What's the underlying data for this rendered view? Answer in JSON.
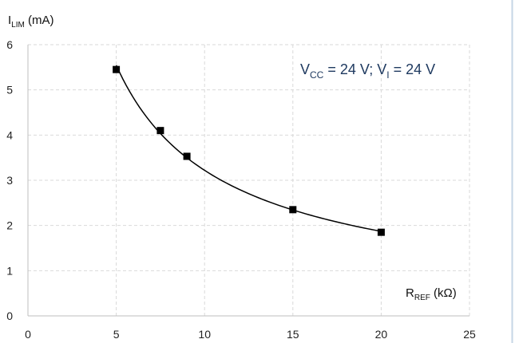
{
  "chart_data": {
    "type": "scatter",
    "title": "",
    "ylabel": {
      "main": "I",
      "sub": "LIM",
      "unit": " (mA)"
    },
    "xlabel": {
      "main": "R",
      "sub": "REF",
      "unit": " (kΩ)"
    },
    "annotation": {
      "p1": "V",
      "p1_sub": "CC",
      "p2": " = 24 V; V",
      "p2_sub": "I",
      "p3": " = 24 V",
      "color": "#1f3a60"
    },
    "xlim": [
      0,
      25
    ],
    "ylim": [
      0,
      6
    ],
    "xticks": [
      "0",
      "5",
      "10",
      "15",
      "20",
      "25"
    ],
    "yticks": [
      "0",
      "1",
      "2",
      "3",
      "4",
      "5",
      "6"
    ],
    "grid": true,
    "trendline": "power",
    "series": [
      {
        "x": [
          5,
          7.5,
          9,
          15,
          20
        ],
        "y": [
          5.45,
          4.1,
          3.53,
          2.35,
          1.85
        ]
      }
    ],
    "colors": {
      "marker": "#000000",
      "line": "#000000",
      "grid": "#d9d9d9",
      "axis": "#bfbfbf",
      "border": "#c6d6e6"
    }
  }
}
